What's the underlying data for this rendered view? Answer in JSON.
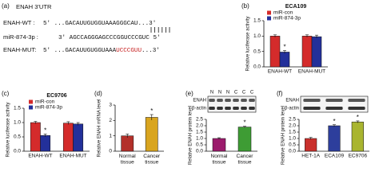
{
  "sequence_panel": {
    "label": "(a)",
    "heading": "ENAH 3'UTR",
    "wt": {
      "name": "ENAH-WT :",
      "sequence": "5' ...GACAUUGUGGUAAAGGGCAU...3'"
    },
    "mir": {
      "name": "miR-874-3p :",
      "sequence": "3' AGCCAGGGAGCCCGGUCCCGUC 5'"
    },
    "mut": {
      "name": "ENAH-MUT:",
      "sequence_start": "5' ...GACAUUGUGGUAAA",
      "mutated": "UCCCGUU",
      "sequence_end": "...3'"
    }
  },
  "chart_data": [
    {
      "type": "bar",
      "label": "(b)",
      "title": "ECA109",
      "ylabel": "Relative luciferase activity",
      "categories": [
        "ENAH-WT",
        "ENAH-MUT"
      ],
      "series": [
        {
          "name": "miR-con",
          "color": "#d42b2b",
          "values": [
            1.0,
            1.0
          ],
          "errors": [
            0.04,
            0.04
          ],
          "significance": [
            null,
            null
          ]
        },
        {
          "name": "miR-874-3p",
          "color": "#23309a",
          "values": [
            0.48,
            0.98
          ],
          "errors": [
            0.05,
            0.05
          ],
          "significance": [
            "*",
            null
          ]
        }
      ],
      "ylim": [
        0,
        1.5
      ],
      "yticks": [
        {
          "value": 0,
          "label": "0.0"
        },
        0.5,
        {
          "value": 1,
          "label": "1.0"
        },
        1.5
      ]
    },
    {
      "type": "bar",
      "label": "(c)",
      "title": "EC9706",
      "ylabel": "Relative luciferase activity",
      "categories": [
        "ENAH-WT",
        "ENAH-MUT"
      ],
      "series": [
        {
          "name": "miR-con",
          "color": "#d42b2b",
          "values": [
            1.0,
            0.98
          ],
          "errors": [
            0.04,
            0.05
          ],
          "significance": [
            null,
            null
          ]
        },
        {
          "name": "miR-874-3p",
          "color": "#23309a",
          "values": [
            0.55,
            0.95
          ],
          "errors": [
            0.05,
            0.05
          ],
          "significance": [
            "*",
            null
          ]
        }
      ],
      "ylim": [
        0,
        1.5
      ],
      "yticks": [
        {
          "value": 0,
          "label": "0.0"
        },
        0.5,
        {
          "value": 1,
          "label": "1.0"
        },
        1.5
      ]
    },
    {
      "type": "bar",
      "label": "(d)",
      "ylabel": "Relative ENAH mRNA level",
      "categories": [
        "Normal tissue",
        "Cancer tissue"
      ],
      "values": [
        1.0,
        2.2
      ],
      "errors": [
        0.12,
        0.18
      ],
      "colors": [
        "#b3302a",
        "#d9a51f"
      ],
      "significance": [
        null,
        "*"
      ],
      "ylim": [
        0,
        3
      ],
      "yticks": [
        0,
        1,
        2,
        3
      ]
    },
    {
      "type": "bar",
      "label": "(e)",
      "ylabel": "Relative ENAH protein level",
      "categories": [
        "Normal tissue",
        "Cancer tissue"
      ],
      "values": [
        1.0,
        1.9
      ],
      "errors": [
        0.06,
        0.06
      ],
      "colors": [
        "#9b1b6c",
        "#3e9c34"
      ],
      "significance": [
        null,
        "*"
      ],
      "blot": {
        "rows": [
          "ENAH",
          "β-actin"
        ],
        "lanes": [
          "N",
          "N",
          "N",
          "C",
          "C",
          "C"
        ]
      },
      "ylim": [
        0,
        2.5
      ],
      "yticks": [
        {
          "value": 0,
          "label": "0.0"
        },
        0.5,
        {
          "value": 1,
          "label": "1.0"
        },
        1.5,
        {
          "value": 2,
          "label": "2.0"
        },
        2.5
      ]
    },
    {
      "type": "bar",
      "label": "(f)",
      "ylabel": "Relative ENAH protein level",
      "categories": [
        "HET-1A",
        "ECA109",
        "EC9706"
      ],
      "values": [
        1.0,
        2.0,
        2.3
      ],
      "errors": [
        0.08,
        0.08,
        0.08
      ],
      "colors": [
        "#c9302c",
        "#2d3e9c",
        "#a9b52f"
      ],
      "significance": [
        null,
        "*",
        "*"
      ],
      "blot": {
        "rows": [
          "ENAH",
          "β-actin"
        ]
      },
      "ylim": [
        0,
        2.5
      ],
      "yticks": [
        {
          "value": 0,
          "label": "0.0"
        },
        0.5,
        {
          "value": 1,
          "label": "1.0"
        },
        1.5,
        {
          "value": 2,
          "label": "2.0"
        },
        2.5
      ]
    }
  ]
}
